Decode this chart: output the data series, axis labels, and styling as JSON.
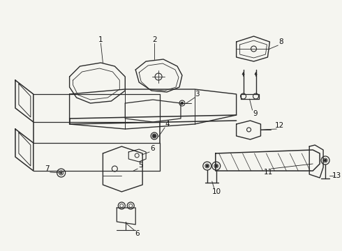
{
  "bg_color": "#f5f5f0",
  "line_color": "#2a2a2a",
  "text_color": "#111111",
  "fig_width": 4.9,
  "fig_height": 3.6,
  "dpi": 100
}
